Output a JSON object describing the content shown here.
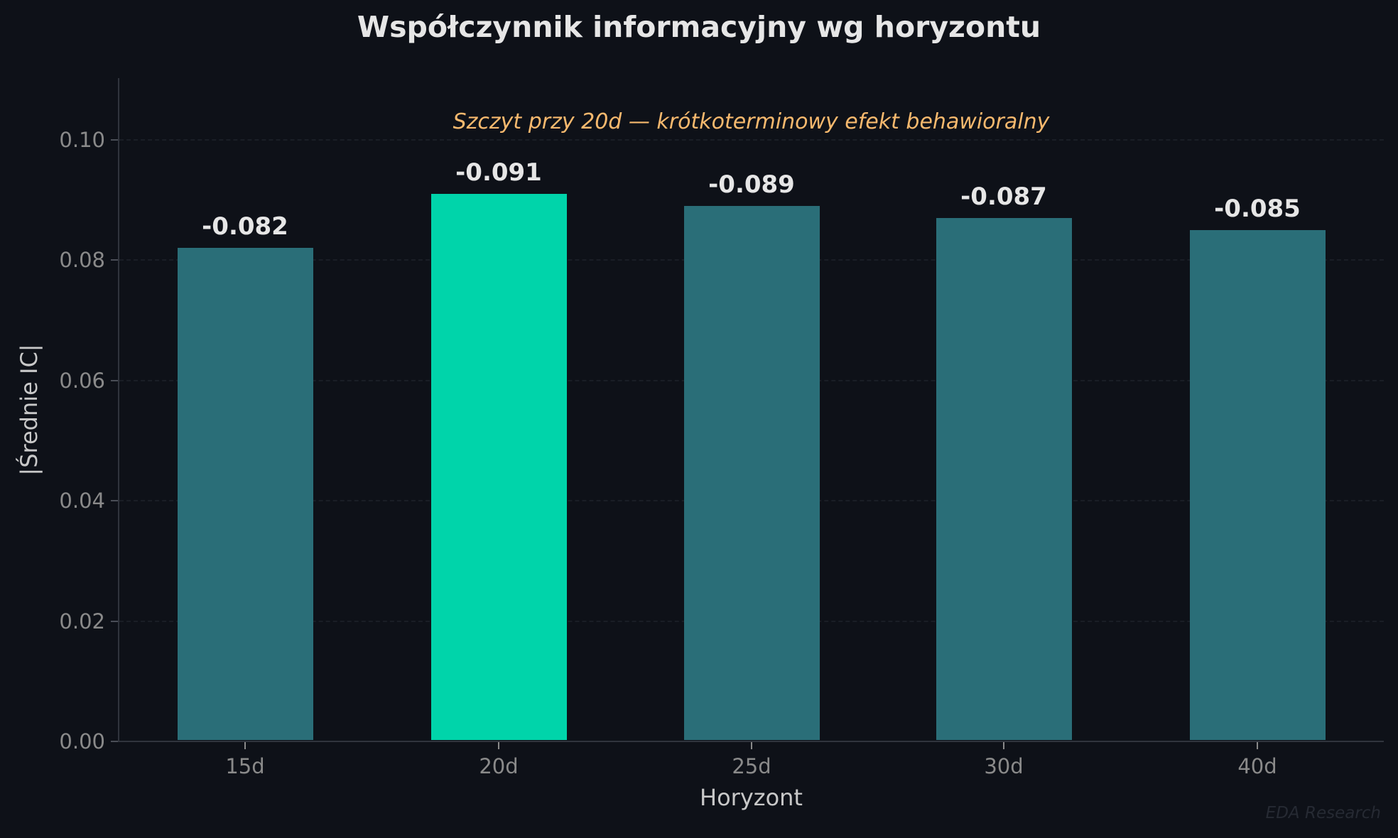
{
  "chart_data": {
    "type": "bar",
    "title": "Współczynnik informacyjny wg horyzontu",
    "subtitle": "Szczyt przy 20d — krótkoterminowy efekt behawioralny",
    "xlabel": "Horyzont",
    "ylabel": "|Średnie IC|",
    "categories": [
      "15d",
      "20d",
      "25d",
      "30d",
      "40d"
    ],
    "values": [
      0.082,
      0.091,
      0.089,
      0.087,
      0.085
    ],
    "value_labels": [
      "-0.082",
      "-0.091",
      "-0.089",
      "-0.087",
      "-0.085"
    ],
    "highlight_index": 1,
    "ylim": [
      0,
      0.11
    ],
    "yticks": [
      "0.00",
      "0.02",
      "0.04",
      "0.06",
      "0.08",
      "0.10"
    ],
    "grid": true,
    "legend": null,
    "colors": {
      "bar": "#2a6e78",
      "highlight": "#00d4aa",
      "background": "#0e1118",
      "annotation": "#f7b96e"
    },
    "watermark": "EDA Research"
  }
}
